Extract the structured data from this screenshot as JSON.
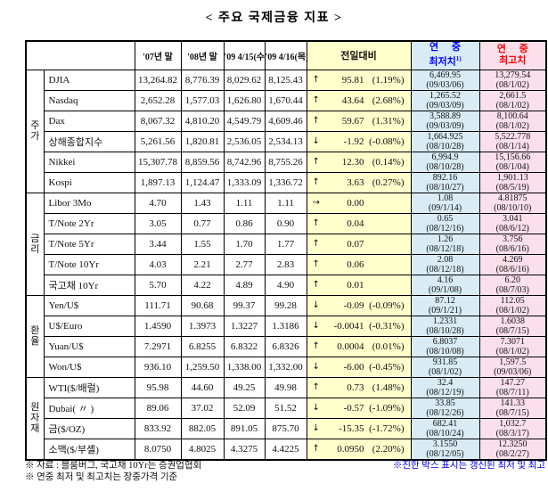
{
  "title": "< 주요 국제금융 지표 >",
  "colors": {
    "daily_change_bg": "#FFFFCC",
    "year_low_bg": "#D9ECF6",
    "year_high_bg": "#FBE0EC",
    "year_low_header_text": "#0000FF",
    "year_high_header_text": "#FF0000",
    "footnote_right_text": "#0000E6"
  },
  "table": {
    "headers": {
      "c1": "'07년 말",
      "c2": "'08년 말",
      "c3": "'09 4/15(수)",
      "c4": "'09 4/16(목)",
      "diff": "전일대비",
      "low_line1": "연 중",
      "low_line2": "최저치",
      "low_sup": "1)",
      "high_line1": "연 중",
      "high_line2": "최고치"
    },
    "groups": [
      {
        "label": "주가",
        "rows": [
          {
            "name": "DJIA",
            "v07": "13,264.82",
            "v08": "8,776.39",
            "v0415": "8,029.62",
            "v0416": "8,125.43",
            "arrow": "↑",
            "change": "95.81",
            "change_pct": "(1.19%)",
            "low": "6,469.95",
            "low_date": "(09/03/06)",
            "high": "13,279.54",
            "high_date": "(08/1/02)"
          },
          {
            "name": "Nasdaq",
            "v07": "2,652.28",
            "v08": "1,577.03",
            "v0415": "1,626.80",
            "v0416": "1,670.44",
            "arrow": "↑",
            "change": "43.64",
            "change_pct": "(2.68%)",
            "low": "1,265.52",
            "low_date": "(09/03/09)",
            "high": "2,661.5",
            "high_date": "(08/1/02)"
          },
          {
            "name": "Dax",
            "v07": "8,067.32",
            "v08": "4,810.20",
            "v0415": "4,549.79",
            "v0416": "4,609.46",
            "arrow": "↑",
            "change": "59.67",
            "change_pct": "(1.31%)",
            "low": "3,588.89",
            "low_date": "(09/03/09)",
            "high": "8,100.64",
            "high_date": "(08/1/02)"
          },
          {
            "name": "상해종합지수",
            "v07": "5,261.56",
            "v08": "1,820.81",
            "v0415": "2,536.05",
            "v0416": "2,534.13",
            "arrow": "↓",
            "change": "-1.92",
            "change_pct": "(-0.08%)",
            "low": "1,664.925",
            "low_date": "(08/10/28)",
            "high": "5,522.778",
            "high_date": "(08/1/14)"
          },
          {
            "name": "Nikkei",
            "v07": "15,307.78",
            "v08": "8,859.56",
            "v0415": "8,742.96",
            "v0416": "8,755.26",
            "arrow": "↑",
            "change": "12.30",
            "change_pct": "(0.14%)",
            "low": "6,994.9",
            "low_date": "(08/10/28)",
            "high": "15,156.66",
            "high_date": "(08/1/04)"
          },
          {
            "name": "Kospi",
            "v07": "1,897.13",
            "v08": "1,124.47",
            "v0415": "1,333.09",
            "v0416": "1,336.72",
            "arrow": "↑",
            "change": "3.63",
            "change_pct": "(0.27%)",
            "low": "892.16",
            "low_date": "(08/10/27)",
            "high": "1,901.13",
            "high_date": "(08/5/19)"
          }
        ]
      },
      {
        "label": "금리",
        "rows": [
          {
            "name": "Libor 3Mo",
            "v07": "4.70",
            "v08": "1.43",
            "v0415": "1.11",
            "v0416": "1.11",
            "arrow": "→",
            "change": "0.00",
            "change_pct": "",
            "low": "1.08",
            "low_date": "(09/1/14)",
            "high": "4.81875",
            "high_date": "(08/10/10)"
          },
          {
            "name": "T/Note 2Yr",
            "v07": "3.05",
            "v08": "0.77",
            "v0415": "0.86",
            "v0416": "0.90",
            "arrow": "↑",
            "change": "0.04",
            "change_pct": "",
            "low": "0.65",
            "low_date": "(08/12/16)",
            "high": "3.041",
            "high_date": "(08/6/12)"
          },
          {
            "name": "T/Note 5Yr",
            "v07": "3.44",
            "v08": "1.55",
            "v0415": "1.70",
            "v0416": "1.77",
            "arrow": "↑",
            "change": "0.07",
            "change_pct": "",
            "low": "1.26",
            "low_date": "(08/12/18)",
            "high": "3.756",
            "high_date": "(08/6/16)"
          },
          {
            "name": "T/Note 10Yr",
            "v07": "4.03",
            "v08": "2.21",
            "v0415": "2.77",
            "v0416": "2.83",
            "arrow": "↑",
            "change": "0.06",
            "change_pct": "",
            "low": "2.08",
            "low_date": "(08/12/18)",
            "high": "4.269",
            "high_date": "(08/6/16)"
          },
          {
            "name": "국고채 10Yr",
            "v07": "5.70",
            "v08": "4.22",
            "v0415": "4.89",
            "v0416": "4.90",
            "arrow": "↑",
            "change": "0.01",
            "change_pct": "",
            "low": "4.16",
            "low_date": "(09/1/08)",
            "high": "6.20",
            "high_date": "(08/7/03)"
          }
        ]
      },
      {
        "label": "환율",
        "rows": [
          {
            "name": "Yen/U$",
            "v07": "111.71",
            "v08": "90.68",
            "v0415": "99.37",
            "v0416": "99.28",
            "arrow": "↓",
            "change": "-0.09",
            "change_pct": "(-0.09%)",
            "low": "87.12",
            "low_date": "(09/1/21)",
            "high": "112.05",
            "high_date": "(08/1/02)"
          },
          {
            "name": "U$/Euro",
            "v07": "1.4590",
            "v08": "1.3973",
            "v0415": "1.3227",
            "v0416": "1.3186",
            "arrow": "↓",
            "change": "-0.0041",
            "change_pct": "(-0.31%)",
            "low": "1.2331",
            "low_date": "(08/10/28)",
            "high": "1.6038",
            "high_date": "(08/7/15)"
          },
          {
            "name": "Yuan/U$",
            "v07": "7.2971",
            "v08": "6.8255",
            "v0415": "6.8322",
            "v0416": "6.8326",
            "arrow": "↑",
            "change": "0.0004",
            "change_pct": "(0.01%)",
            "low": "6.8037",
            "low_date": "(08/10/08)",
            "high": "7.3071",
            "high_date": "(08/1/02)"
          },
          {
            "name": "Won/U$",
            "v07": "936.10",
            "v08": "1,259.50",
            "v0415": "1,338.00",
            "v0416": "1,332.00",
            "arrow": "↓",
            "change": "-6.00",
            "change_pct": "(-0.45%)",
            "low": "931.85",
            "low_date": "(08/1/02)",
            "high": "1,597.5",
            "high_date": "(09/03/06)"
          }
        ]
      },
      {
        "label": "원자재",
        "rows": [
          {
            "name": "WTI($/배럴)",
            "v07": "95.98",
            "v08": "44.60",
            "v0415": "49.25",
            "v0416": "49.98",
            "arrow": "↑",
            "change": "0.73",
            "change_pct": "(1.48%)",
            "low": "32.4",
            "low_date": "(08/12/19)",
            "high": "147.27",
            "high_date": "(08/7/11)"
          },
          {
            "name": "Dubai( 〃 )",
            "v07": "89.06",
            "v08": "37.02",
            "v0415": "52.09",
            "v0416": "51.52",
            "arrow": "↓",
            "change": "-0.57",
            "change_pct": "(-1.09%)",
            "low": "33.85",
            "low_date": "(08/12/26)",
            "high": "141.33",
            "high_date": "(08/7/15)"
          },
          {
            "name": "금($/OZ)",
            "v07": "833.92",
            "v08": "882.05",
            "v0415": "891.05",
            "v0416": "875.70",
            "arrow": "↓",
            "change": "-15.35",
            "change_pct": "(-1.72%)",
            "low": "682.41",
            "low_date": "(08/10/24)",
            "high": "1,032.7",
            "high_date": "(08/3/17)"
          },
          {
            "name": "소맥($/부셸)",
            "v07": "8.0750",
            "v08": "4.8025",
            "v0415": "4.3275",
            "v0416": "4.4225",
            "arrow": "↑",
            "change": "0.0950",
            "change_pct": "(2.20%)",
            "low": "3.1550",
            "low_date": "(08/12/05)",
            "high": "12.3250",
            "high_date": "(08/2/27)"
          }
        ]
      }
    ]
  },
  "footnotes": {
    "left_line1": "※ 자료 : 블룸버그, 국고채 10Yr는 증권업협회",
    "left_line2": "※ 연중 최저 및 최고치는 장중가격 기준",
    "right_note": "※진한 박스 표시는 갱신된 최저 및 최고"
  }
}
